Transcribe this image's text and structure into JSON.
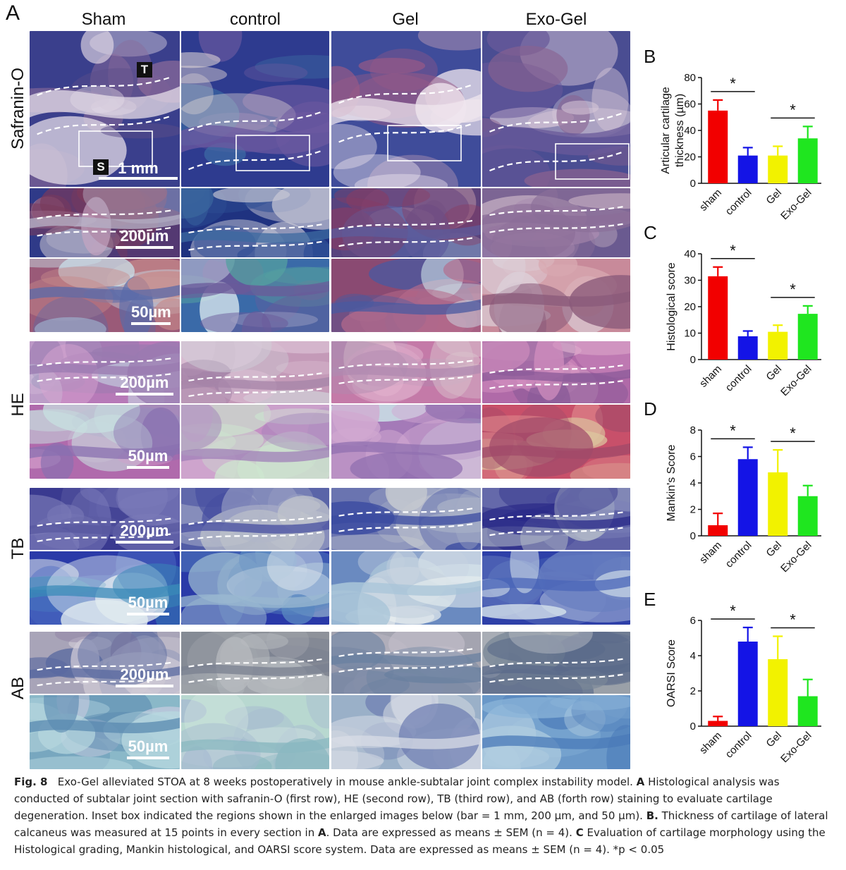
{
  "figure": {
    "panel_a_letter": "A",
    "column_labels": [
      "Sham",
      "control",
      "Gel",
      "Exo-Gel"
    ],
    "row_labels": [
      "Safranin-O",
      "HE",
      "TB",
      "AB"
    ],
    "markers": {
      "t": "T",
      "s": "S"
    },
    "scale_labels": {
      "mm": "1 mm",
      "um200": "200µm",
      "um50": "50µm"
    }
  },
  "chart_data": [
    {
      "panel": "B",
      "type": "bar",
      "ylabel": "Articular cartilage\nthickness (µm)",
      "categories": [
        "sham",
        "control",
        "Gel",
        "Exo-Gel"
      ],
      "values": [
        55,
        21,
        21,
        34
      ],
      "errors": [
        8,
        6,
        7,
        9
      ],
      "colors": [
        "#f20000",
        "#1414e6",
        "#f2f200",
        "#1fe61f"
      ],
      "ylim": [
        0,
        80
      ],
      "yticks": [
        0,
        20,
        40,
        60,
        80
      ],
      "significance": [
        {
          "from": 0,
          "to": 1,
          "label": "*"
        },
        {
          "from": 2,
          "to": 3,
          "label": "*"
        }
      ]
    },
    {
      "panel": "C",
      "type": "bar",
      "ylabel": "Histological score",
      "categories": [
        "sham",
        "control",
        "Gel",
        "Exo-Gel"
      ],
      "values": [
        31.5,
        8.8,
        10.5,
        17.3
      ],
      "errors": [
        3.5,
        2.0,
        2.5,
        3.0
      ],
      "colors": [
        "#f20000",
        "#1414e6",
        "#f2f200",
        "#1fe61f"
      ],
      "ylim": [
        0,
        40
      ],
      "yticks": [
        0,
        10,
        20,
        30,
        40
      ],
      "significance": [
        {
          "from": 0,
          "to": 1,
          "label": "*"
        },
        {
          "from": 2,
          "to": 3,
          "label": "*"
        }
      ]
    },
    {
      "panel": "D",
      "type": "bar",
      "ylabel": "Mankin's Score",
      "categories": [
        "sham",
        "control",
        "Gel",
        "Exo-Gel"
      ],
      "values": [
        0.8,
        5.8,
        4.8,
        3.0
      ],
      "errors": [
        0.9,
        0.9,
        1.7,
        0.8
      ],
      "colors": [
        "#f20000",
        "#1414e6",
        "#f2f200",
        "#1fe61f"
      ],
      "ylim": [
        0,
        8
      ],
      "yticks": [
        0,
        2,
        4,
        6,
        8
      ],
      "significance": [
        {
          "from": 0,
          "to": 1,
          "label": "*"
        },
        {
          "from": 2,
          "to": 3,
          "label": "*"
        }
      ]
    },
    {
      "panel": "E",
      "type": "bar",
      "ylabel": "OARSI Score",
      "categories": [
        "sham",
        "control",
        "Gel",
        "Exo-Gel"
      ],
      "values": [
        0.3,
        4.8,
        3.8,
        1.7
      ],
      "errors": [
        0.25,
        0.8,
        1.3,
        0.95
      ],
      "colors": [
        "#f20000",
        "#1414e6",
        "#f2f200",
        "#1fe61f"
      ],
      "ylim": [
        0,
        6
      ],
      "yticks": [
        0,
        2,
        4,
        6
      ],
      "significance": [
        {
          "from": 0,
          "to": 1,
          "label": "*"
        },
        {
          "from": 2,
          "to": 3,
          "label": "*"
        }
      ]
    }
  ],
  "caption": {
    "fig_label": "Fig. 8",
    "s1": "Exo-Gel alleviated STOA at 8 weeks postoperatively in mouse ankle-subtalar joint complex instability model.",
    "a_label": "A",
    "s2": "Histological analysis was conducted of subtalar joint section with safranin-O (first row), HE (second row), TB (third row), and AB (forth row) staining to evaluate cartilage degeneration. Inset box indicated the regions shown in the enlarged images below (bar = 1 mm, 200 µm, and 50 µm).",
    "b_label": "B.",
    "s3": "Thickness of cartilage of lateral calcaneus was measured at 15 points in every section in",
    "a_ref": "A",
    "s4": ". Data are expressed as means ± SEM (n = 4).",
    "c_label": "C",
    "s5": "Evaluation of cartilage morphology using the Histological grading, Mankin histological, and OARSI score system. Data are expressed as means ± SEM (n = 4). *p < 0.05"
  }
}
